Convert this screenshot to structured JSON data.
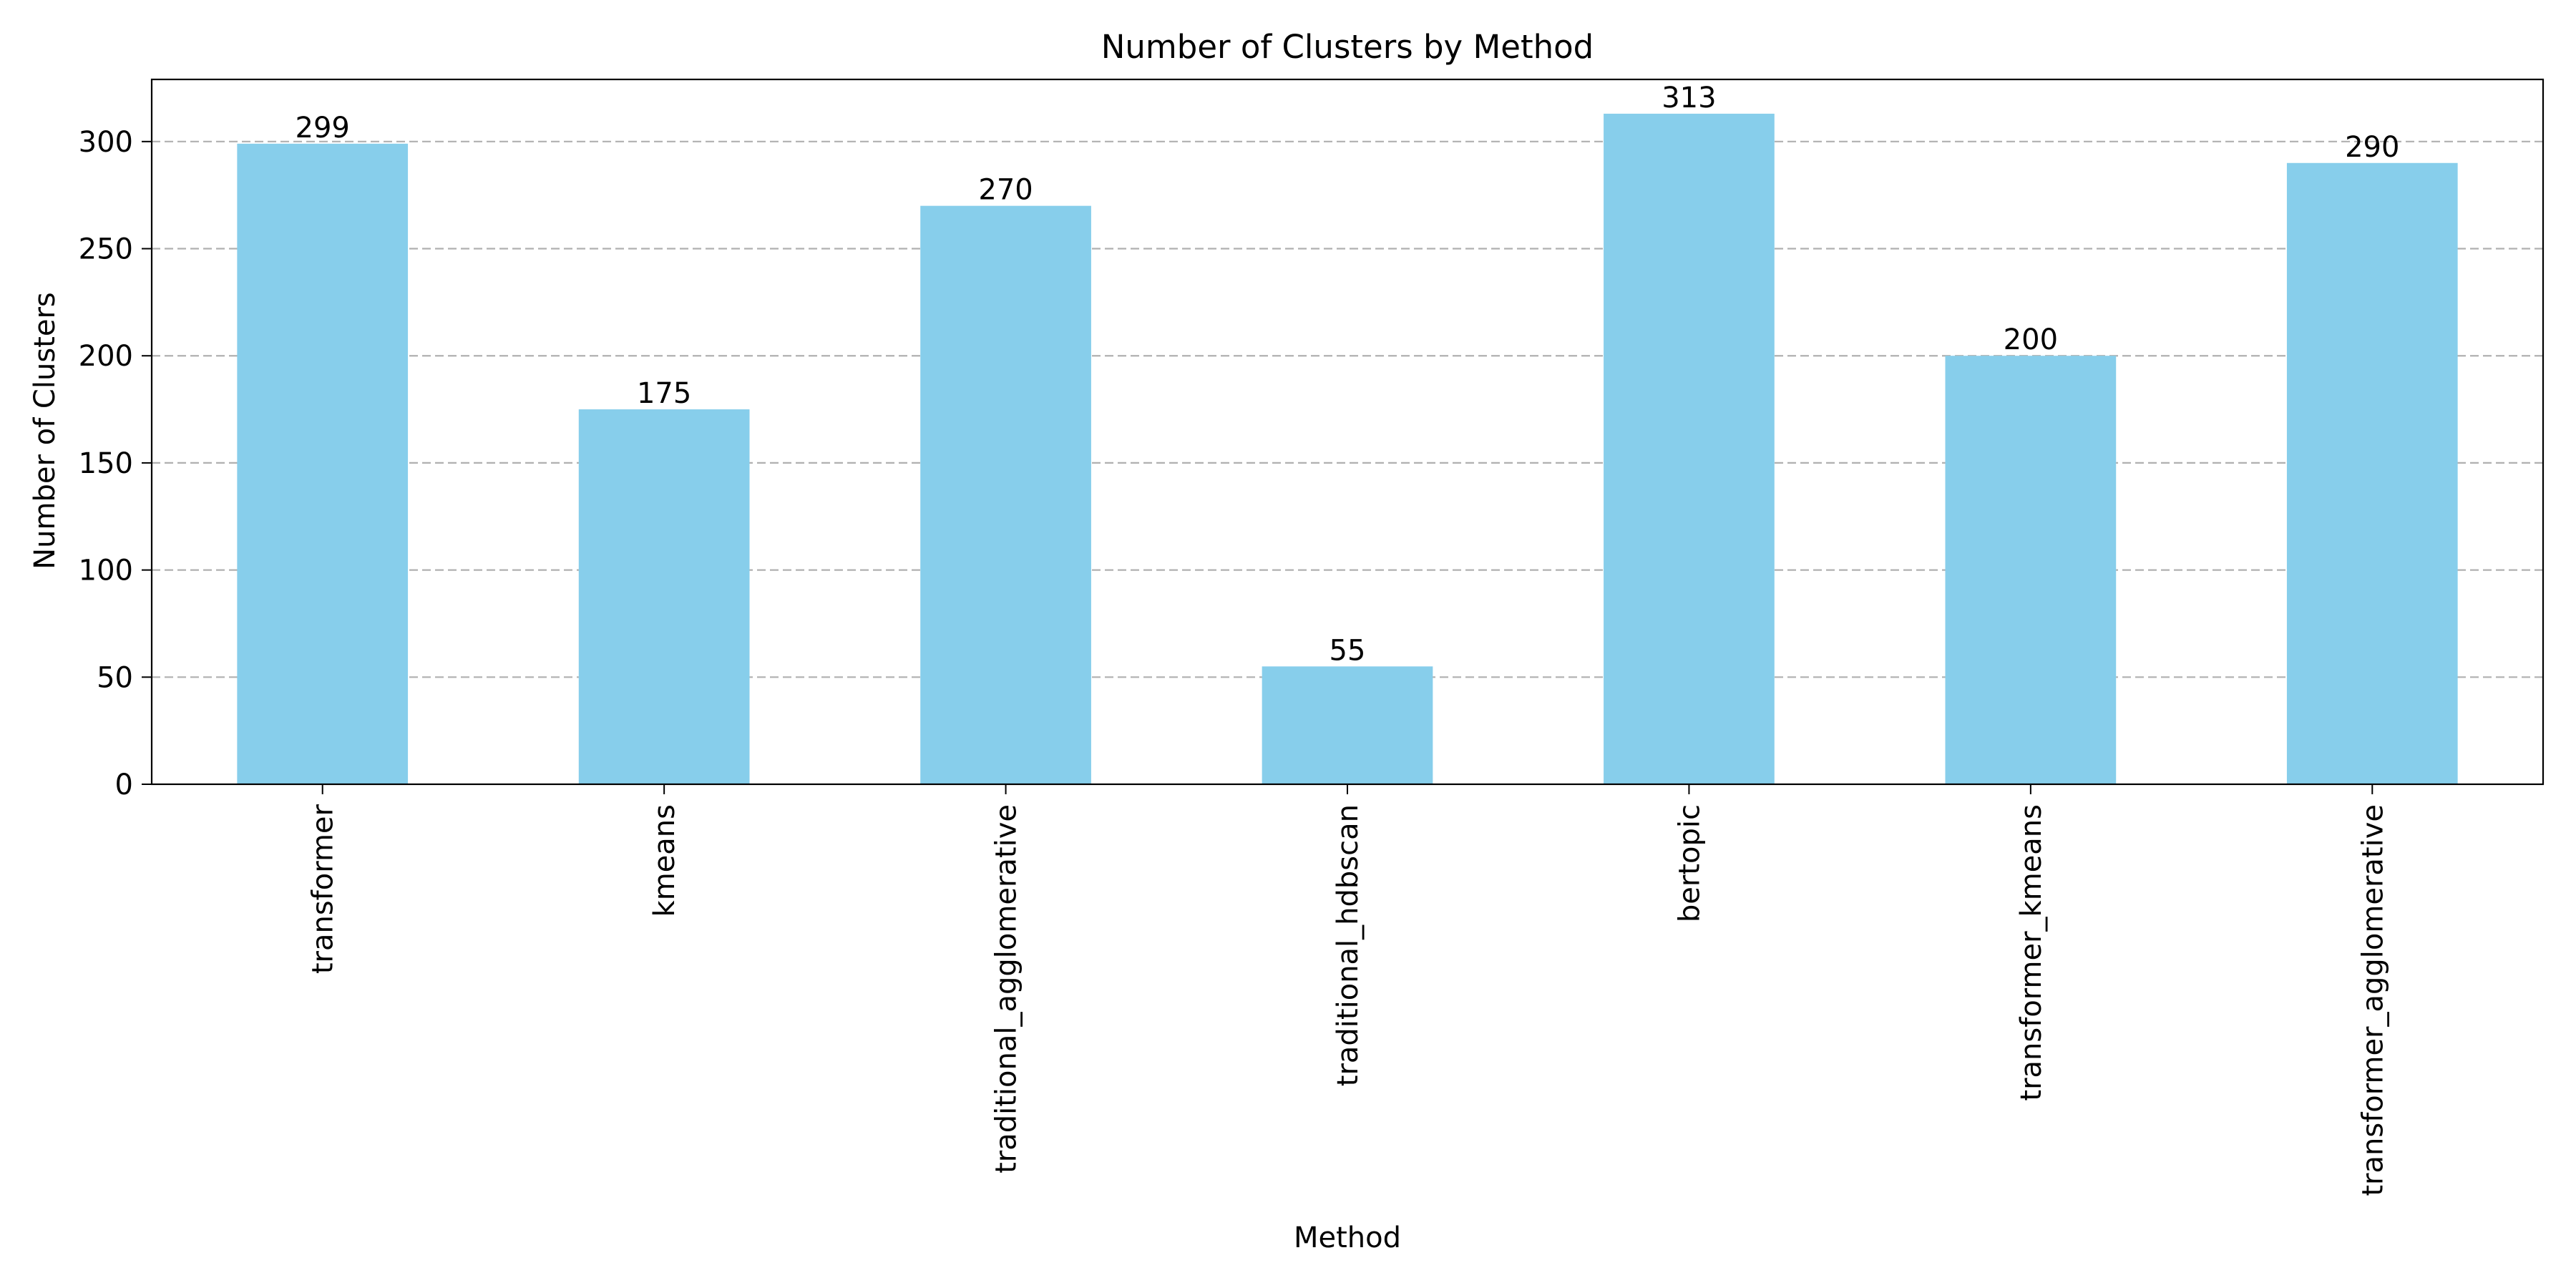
{
  "chart_data": {
    "type": "bar",
    "title": "Number of Clusters by Method",
    "xlabel": "Method",
    "ylabel": "Number of Clusters",
    "categories": [
      "transformer",
      "kmeans",
      "traditional_agglomerative",
      "traditional_hdbscan",
      "bertopic",
      "transformer_kmeans",
      "transformer_agglomerative"
    ],
    "values": [
      299,
      175,
      270,
      55,
      313,
      200,
      290
    ],
    "ylim": [
      0,
      329
    ],
    "yticks": [
      0,
      50,
      100,
      150,
      200,
      250,
      300
    ],
    "grid": "horizontal-dashed",
    "legend": "none",
    "bar_color": "#87CEEB",
    "data_labels": true
  }
}
